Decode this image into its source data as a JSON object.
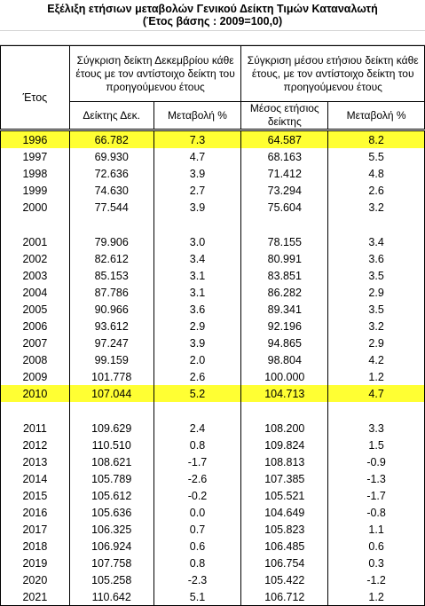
{
  "title_line1": "Εξέλιξη ετήσιων μεταβολών Γενικού Δείκτη Τιμών Καταναλωτή",
  "title_line2": "(Έτος βάσης : 2009=100,0)",
  "headers": {
    "year": "Έτος",
    "group_december": "Σύγκριση δείκτη Δεκεμβρίου κάθε έτους με τον αντίστοιχο δείκτη του προηγούμενου έτους",
    "group_average": "Σύγκριση μέσου ετήσιου δείκτη κάθε έτους, με τον αντίστοιχο δείκτη του προηγούμενου έτους",
    "dec_index": "Δείκτης Δεκ.",
    "dec_change": "Μεταβολή %",
    "avg_index": "Μέσος ετήσιος δείκτης",
    "avg_change": "Μεταβολή %"
  },
  "rows": [
    {
      "year": "1996",
      "dec_index": "66.782",
      "dec_change": "7.3",
      "avg_index": "64.587",
      "avg_change": "8.2",
      "highlight": true
    },
    {
      "year": "1997",
      "dec_index": "69.930",
      "dec_change": "4.7",
      "avg_index": "68.163",
      "avg_change": "5.5"
    },
    {
      "year": "1998",
      "dec_index": "72.636",
      "dec_change": "3.9",
      "avg_index": "71.412",
      "avg_change": "4.8"
    },
    {
      "year": "1999",
      "dec_index": "74.630",
      "dec_change": "2.7",
      "avg_index": "73.294",
      "avg_change": "2.6"
    },
    {
      "year": "2000",
      "dec_index": "77.544",
      "dec_change": "3.9",
      "avg_index": "75.604",
      "avg_change": "3.2"
    },
    {
      "blank": true
    },
    {
      "year": "2001",
      "dec_index": "79.906",
      "dec_change": "3.0",
      "avg_index": "78.155",
      "avg_change": "3.4"
    },
    {
      "year": "2002",
      "dec_index": "82.612",
      "dec_change": "3.4",
      "avg_index": "80.991",
      "avg_change": "3.6"
    },
    {
      "year": "2003",
      "dec_index": "85.153",
      "dec_change": "3.1",
      "avg_index": "83.851",
      "avg_change": "3.5"
    },
    {
      "year": "2004",
      "dec_index": "87.786",
      "dec_change": "3.1",
      "avg_index": "86.282",
      "avg_change": "2.9"
    },
    {
      "year": "2005",
      "dec_index": "90.966",
      "dec_change": "3.6",
      "avg_index": "89.341",
      "avg_change": "3.5"
    },
    {
      "year": "2006",
      "dec_index": "93.612",
      "dec_change": "2.9",
      "avg_index": "92.196",
      "avg_change": "3.2"
    },
    {
      "year": "2007",
      "dec_index": "97.247",
      "dec_change": "3.9",
      "avg_index": "94.865",
      "avg_change": "2.9"
    },
    {
      "year": "2008",
      "dec_index": "99.159",
      "dec_change": "2.0",
      "avg_index": "98.804",
      "avg_change": "4.2"
    },
    {
      "year": "2009",
      "dec_index": "101.778",
      "dec_change": "2.6",
      "avg_index": "100.000",
      "avg_change": "1.2"
    },
    {
      "year": "2010",
      "dec_index": "107.044",
      "dec_change": "5.2",
      "avg_index": "104.713",
      "avg_change": "4.7",
      "highlight": true
    },
    {
      "blank": true
    },
    {
      "year": "2011",
      "dec_index": "109.629",
      "dec_change": "2.4",
      "avg_index": "108.200",
      "avg_change": "3.3"
    },
    {
      "year": "2012",
      "dec_index": "110.510",
      "dec_change": "0.8",
      "avg_index": "109.824",
      "avg_change": "1.5"
    },
    {
      "year": "2013",
      "dec_index": "108.621",
      "dec_change": "-1.7",
      "avg_index": "108.813",
      "avg_change": "-0.9"
    },
    {
      "year": "2014",
      "dec_index": "105.789",
      "dec_change": "-2.6",
      "avg_index": "107.385",
      "avg_change": "-1.3"
    },
    {
      "year": "2015",
      "dec_index": "105.612",
      "dec_change": "-0.2",
      "avg_index": "105.521",
      "avg_change": "-1.7"
    },
    {
      "year": "2016",
      "dec_index": "105.636",
      "dec_change": "0.0",
      "avg_index": "104.649",
      "avg_change": "-0.8"
    },
    {
      "year": "2017",
      "dec_index": "106.325",
      "dec_change": "0.7",
      "avg_index": "105.823",
      "avg_change": "1.1"
    },
    {
      "year": "2018",
      "dec_index": "106.924",
      "dec_change": "0.6",
      "avg_index": "106.485",
      "avg_change": "0.6"
    },
    {
      "year": "2019",
      "dec_index": "107.758",
      "dec_change": "0.8",
      "avg_index": "106.754",
      "avg_change": "0.3"
    },
    {
      "year": "2020",
      "dec_index": "105.258",
      "dec_change": "-2.3",
      "avg_index": "105.422",
      "avg_change": "-1.2"
    },
    {
      "year": "2021",
      "dec_index": "110.642",
      "dec_change": "5.1",
      "avg_index": "106.712",
      "avg_change": "1.2"
    }
  ]
}
